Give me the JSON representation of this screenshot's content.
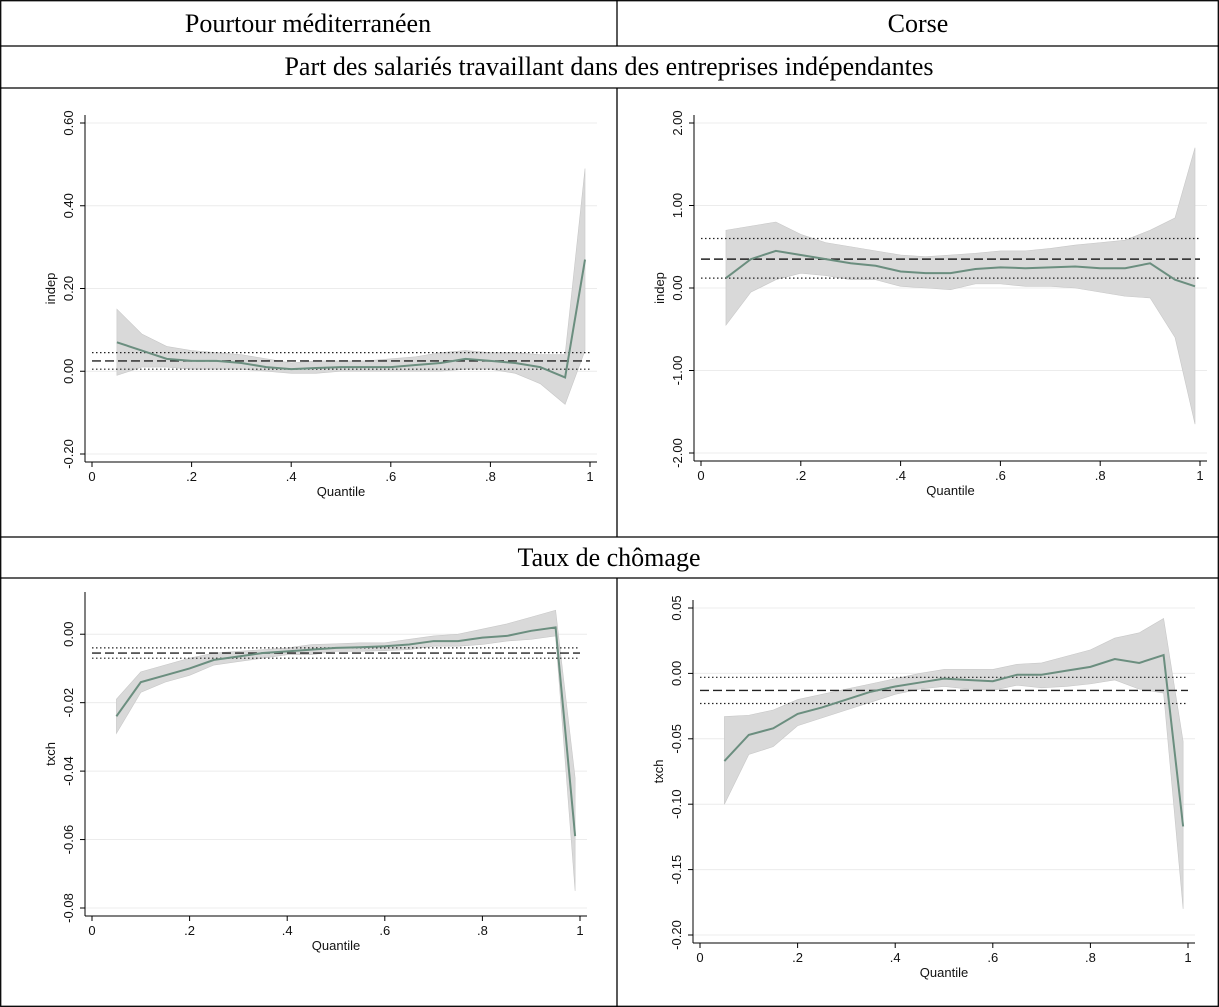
{
  "table": {
    "header": [
      "Pourtour méditerranéen",
      "Corse"
    ],
    "sections": [
      "Part des salariés travaillant dans des entreprises indépendantes",
      "Taux de chômage"
    ]
  },
  "chart_data": [
    {
      "type": "line",
      "ylabel": "indep",
      "xlabel": "Quantile",
      "x": [
        0.05,
        0.1,
        0.15,
        0.2,
        0.25,
        0.3,
        0.35,
        0.4,
        0.45,
        0.5,
        0.55,
        0.6,
        0.65,
        0.7,
        0.75,
        0.8,
        0.85,
        0.9,
        0.95,
        0.99
      ],
      "estimate": {
        "color": "#6b8e7f",
        "values": [
          0.07,
          0.05,
          0.03,
          0.025,
          0.025,
          0.02,
          0.01,
          0.005,
          0.008,
          0.01,
          0.01,
          0.01,
          0.015,
          0.02,
          0.03,
          0.025,
          0.02,
          0.01,
          -0.015,
          0.27
        ]
      },
      "band": {
        "color": "#d9d9d9",
        "upper": [
          0.15,
          0.09,
          0.06,
          0.05,
          0.045,
          0.04,
          0.03,
          0.02,
          0.025,
          0.025,
          0.025,
          0.03,
          0.035,
          0.045,
          0.05,
          0.045,
          0.045,
          0.04,
          0.04,
          0.49
        ],
        "lower": [
          -0.01,
          0.01,
          0.01,
          0.005,
          0.005,
          0.005,
          0,
          -0.005,
          -0.005,
          0,
          0,
          0,
          0,
          0,
          0.005,
          0.005,
          -0.005,
          -0.03,
          -0.08,
          0.05
        ]
      },
      "ols": {
        "color": "#222222",
        "value": 0.025,
        "upper": 0.045,
        "lower": 0.005
      },
      "xlim": [
        0,
        1
      ],
      "xticks": [
        0,
        {
          "value": 0.2,
          "label": ".2"
        },
        {
          "value": 0.4,
          "label": ".4"
        },
        {
          "value": 0.6,
          "label": ".6"
        },
        {
          "value": 0.8,
          "label": ".8"
        },
        1
      ],
      "ylim": [
        -0.2,
        0.6
      ],
      "yticks": [
        {
          "value": -0.2,
          "label": "-0.20"
        },
        {
          "value": 0,
          "label": "0.00"
        },
        {
          "value": 0.2,
          "label": "0.20"
        },
        {
          "value": 0.4,
          "label": "0.40"
        },
        {
          "value": 0.6,
          "label": "0.60"
        }
      ],
      "grid": true
    },
    {
      "type": "line",
      "ylabel": "indep",
      "xlabel": "Quantile",
      "x": [
        0.05,
        0.1,
        0.15,
        0.2,
        0.25,
        0.3,
        0.35,
        0.4,
        0.45,
        0.5,
        0.55,
        0.6,
        0.65,
        0.7,
        0.75,
        0.8,
        0.85,
        0.9,
        0.95,
        0.99
      ],
      "estimate": {
        "color": "#6b8e7f",
        "values": [
          0.12,
          0.35,
          0.45,
          0.4,
          0.35,
          0.3,
          0.27,
          0.2,
          0.18,
          0.18,
          0.23,
          0.25,
          0.24,
          0.25,
          0.26,
          0.24,
          0.24,
          0.3,
          0.1,
          0.02
        ]
      },
      "band": {
        "color": "#d9d9d9",
        "upper": [
          0.7,
          0.75,
          0.8,
          0.65,
          0.55,
          0.5,
          0.45,
          0.4,
          0.38,
          0.4,
          0.42,
          0.45,
          0.45,
          0.48,
          0.52,
          0.55,
          0.58,
          0.7,
          0.85,
          1.7
        ],
        "lower": [
          -0.45,
          -0.05,
          0.1,
          0.18,
          0.15,
          0.1,
          0.1,
          0.02,
          0,
          -0.02,
          0.05,
          0.05,
          0.02,
          0.02,
          0,
          -0.05,
          -0.1,
          -0.12,
          -0.6,
          -1.65
        ]
      },
      "ols": {
        "color": "#222222",
        "value": 0.35,
        "upper": 0.6,
        "lower": 0.12
      },
      "xlim": [
        0,
        1
      ],
      "xticks": [
        0,
        {
          "value": 0.2,
          "label": ".2"
        },
        {
          "value": 0.4,
          "label": ".4"
        },
        {
          "value": 0.6,
          "label": ".6"
        },
        {
          "value": 0.8,
          "label": ".8"
        },
        1
      ],
      "ylim": [
        -2,
        2
      ],
      "yticks": [
        {
          "value": -2,
          "label": "-2.00"
        },
        {
          "value": -1,
          "label": "-1.00"
        },
        {
          "value": 0,
          "label": "0.00"
        },
        {
          "value": 1,
          "label": "1.00"
        },
        {
          "value": 2,
          "label": "2.00"
        }
      ],
      "grid": true
    },
    {
      "type": "line",
      "ylabel": "txch",
      "xlabel": "Quantile",
      "x": [
        0.05,
        0.1,
        0.15,
        0.2,
        0.25,
        0.3,
        0.35,
        0.4,
        0.45,
        0.5,
        0.55,
        0.6,
        0.65,
        0.7,
        0.75,
        0.8,
        0.85,
        0.9,
        0.95,
        0.99
      ],
      "estimate": {
        "color": "#6b8e7f",
        "values": [
          -0.024,
          -0.014,
          -0.012,
          -0.01,
          -0.0075,
          -0.0065,
          -0.0055,
          -0.005,
          -0.0045,
          -0.004,
          -0.0038,
          -0.0035,
          -0.003,
          -0.002,
          -0.002,
          -0.001,
          -0.0005,
          0.001,
          0.002,
          -0.059
        ]
      },
      "band": {
        "color": "#d9d9d9",
        "upper": [
          -0.019,
          -0.011,
          -0.009,
          -0.007,
          -0.0055,
          -0.005,
          -0.0045,
          -0.004,
          -0.003,
          -0.0028,
          -0.0025,
          -0.0025,
          -0.0015,
          -0.0005,
          0,
          0.0015,
          0.003,
          0.005,
          0.007,
          -0.042
        ],
        "lower": [
          -0.029,
          -0.017,
          -0.014,
          -0.012,
          -0.009,
          -0.008,
          -0.007,
          -0.006,
          -0.006,
          -0.005,
          -0.005,
          -0.0048,
          -0.0045,
          -0.0035,
          -0.0035,
          -0.003,
          -0.002,
          -0.0015,
          -0.0005,
          -0.075
        ]
      },
      "ols": {
        "color": "#222222",
        "value": -0.0055,
        "upper": -0.004,
        "lower": -0.007
      },
      "xlim": [
        0,
        1
      ],
      "xticks": [
        0,
        {
          "value": 0.2,
          "label": ".2"
        },
        {
          "value": 0.4,
          "label": ".4"
        },
        {
          "value": 0.6,
          "label": ".6"
        },
        {
          "value": 0.8,
          "label": ".8"
        },
        1
      ],
      "ylim": [
        -0.08,
        0.01
      ],
      "yticks": [
        -0.08,
        -0.06,
        -0.04,
        -0.02,
        {
          "value": 0,
          "label": "0.00"
        }
      ],
      "grid": true
    },
    {
      "type": "line",
      "ylabel": "txch",
      "xlabel": "Quantile",
      "x": [
        0.05,
        0.1,
        0.15,
        0.2,
        0.25,
        0.3,
        0.35,
        0.4,
        0.45,
        0.5,
        0.55,
        0.6,
        0.65,
        0.7,
        0.75,
        0.8,
        0.85,
        0.9,
        0.95,
        0.99
      ],
      "estimate": {
        "color": "#6b8e7f",
        "values": [
          -0.067,
          -0.047,
          -0.042,
          -0.031,
          -0.026,
          -0.02,
          -0.014,
          -0.01,
          -0.007,
          -0.004,
          -0.005,
          -0.006,
          -0.001,
          -0.001,
          0.002,
          0.005,
          0.011,
          0.008,
          0.014,
          -0.117
        ]
      },
      "band": {
        "color": "#d9d9d9",
        "upper": [
          -0.033,
          -0.032,
          -0.028,
          -0.02,
          -0.016,
          -0.012,
          -0.008,
          -0.004,
          0,
          0.003,
          0.003,
          0.003,
          0.007,
          0.008,
          0.013,
          0.018,
          0.027,
          0.031,
          0.042,
          -0.052
        ],
        "lower": [
          -0.1,
          -0.062,
          -0.056,
          -0.04,
          -0.034,
          -0.028,
          -0.022,
          -0.016,
          -0.012,
          -0.01,
          -0.012,
          -0.013,
          -0.009,
          -0.011,
          -0.01,
          -0.008,
          -0.005,
          -0.012,
          -0.015,
          -0.18
        ]
      },
      "ols": {
        "color": "#222222",
        "value": -0.013,
        "upper": -0.003,
        "lower": -0.023
      },
      "xlim": [
        0,
        1
      ],
      "xticks": [
        0,
        {
          "value": 0.2,
          "label": ".2"
        },
        {
          "value": 0.4,
          "label": ".4"
        },
        {
          "value": 0.6,
          "label": ".6"
        },
        {
          "value": 0.8,
          "label": ".8"
        },
        1
      ],
      "ylim": [
        -0.2,
        0.05
      ],
      "yticks": [
        {
          "value": -0.2,
          "label": "-0.20"
        },
        -0.15,
        {
          "value": -0.1,
          "label": "-0.10"
        },
        -0.05,
        {
          "value": 0,
          "label": "0.00"
        },
        0.05
      ],
      "grid": true
    }
  ]
}
